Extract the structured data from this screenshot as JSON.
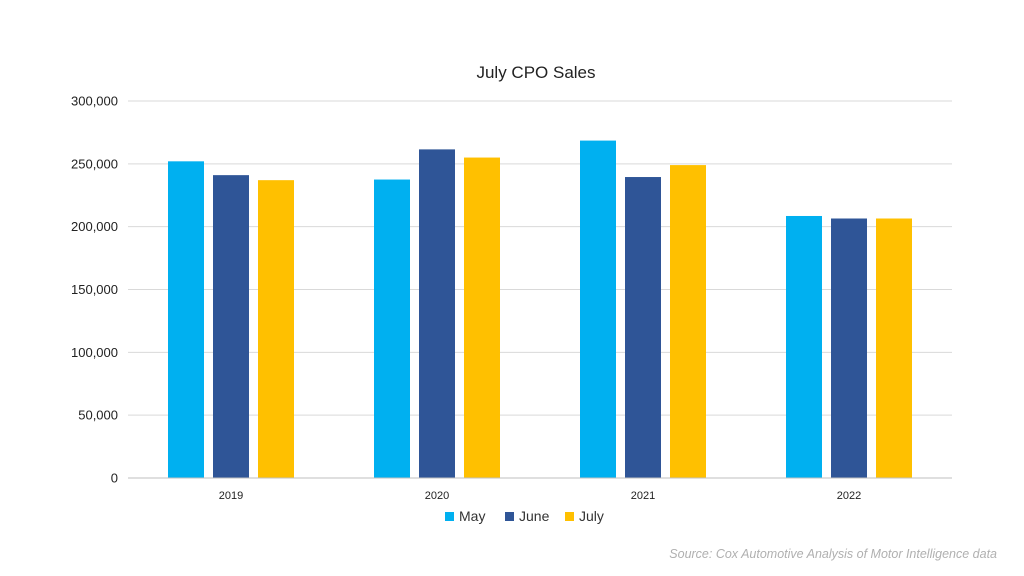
{
  "chart_data": {
    "type": "bar",
    "title": "July CPO Sales",
    "categories": [
      "2019",
      "2020",
      "2021",
      "2022"
    ],
    "series": [
      {
        "name": "May",
        "color": "#00B0F0",
        "values": [
          252000,
          237500,
          268500,
          208500
        ]
      },
      {
        "name": "June",
        "color": "#2F5597",
        "values": [
          241000,
          261500,
          239500,
          206500
        ]
      },
      {
        "name": "July",
        "color": "#FFC000",
        "values": [
          237000,
          255000,
          249000,
          206500
        ]
      }
    ],
    "ylim": [
      0,
      300000
    ],
    "yticks": [
      0,
      50000,
      100000,
      150000,
      200000,
      250000,
      300000
    ],
    "ytick_labels": [
      "0",
      "50,000",
      "100,000",
      "150,000",
      "200,000",
      "250,000",
      "300,000"
    ],
    "xlabel": "",
    "ylabel": "",
    "grid": true,
    "legend_position": "bottom"
  },
  "source_note": "Source: Cox Automotive Analysis of Motor Intelligence data"
}
